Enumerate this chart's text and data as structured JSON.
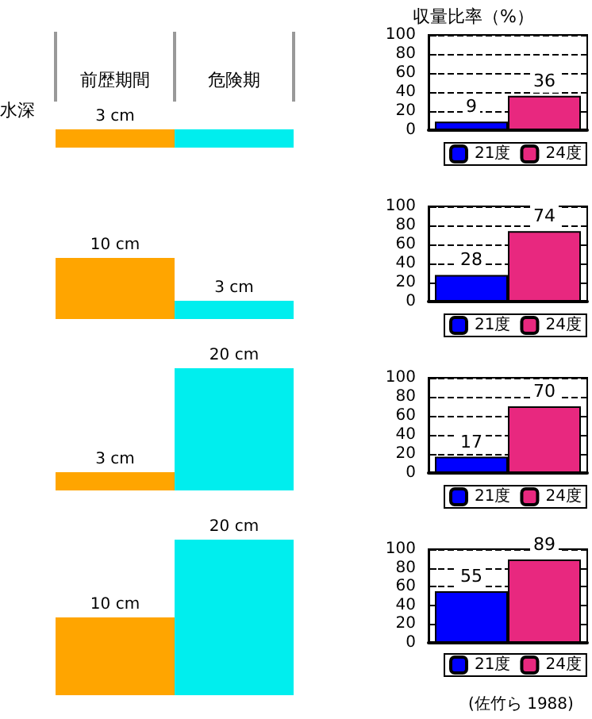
{
  "chart_data": [
    {
      "type": "bar",
      "ylabel": "水深",
      "categories": [
        "前歴期間",
        "危険期"
      ],
      "values": [
        3,
        3
      ],
      "colors": [
        "#ffa500",
        "#00eeee"
      ],
      "value_labels": [
        "3 cm",
        null
      ]
    },
    {
      "type": "bar",
      "title": "収量比率（%）",
      "categories": [
        null
      ],
      "series": [
        {
          "name": "21度",
          "color": "#0000ff",
          "values": [
            9
          ]
        },
        {
          "name": "24度",
          "color": "#e8287f",
          "values": [
            36
          ]
        }
      ],
      "ylim": [
        0,
        100
      ],
      "yticks": [
        0,
        20,
        40,
        60,
        80,
        100
      ],
      "grid": "y",
      "legend": "bottom",
      "data_labels": true,
      "tick_labels": "y"
    },
    {
      "type": "bar",
      "categories": [
        null,
        null
      ],
      "values": [
        10,
        3
      ],
      "colors": [
        "#ffa500",
        "#00eeee"
      ],
      "value_labels": [
        "10 cm",
        "3 cm"
      ]
    },
    {
      "type": "bar",
      "categories": [
        null
      ],
      "series": [
        {
          "name": "21度",
          "color": "#0000ff",
          "values": [
            28
          ]
        },
        {
          "name": "24度",
          "color": "#e8287f",
          "values": [
            74
          ]
        }
      ],
      "ylim": [
        0,
        100
      ],
      "yticks": [
        0,
        20,
        40,
        60,
        80,
        100
      ],
      "grid": "y",
      "legend": "bottom",
      "data_labels": true,
      "tick_labels": "y"
    },
    {
      "type": "bar",
      "categories": [
        null,
        null
      ],
      "values": [
        3,
        20
      ],
      "colors": [
        "#ffa500",
        "#00eeee"
      ],
      "value_labels": [
        "3 cm",
        "20 cm"
      ]
    },
    {
      "type": "bar",
      "categories": [
        null
      ],
      "series": [
        {
          "name": "21度",
          "color": "#0000ff",
          "values": [
            17
          ]
        },
        {
          "name": "24度",
          "color": "#e8287f",
          "values": [
            70
          ]
        }
      ],
      "ylim": [
        0,
        100
      ],
      "yticks": [
        0,
        20,
        40,
        60,
        80,
        100
      ],
      "grid": "y",
      "legend": "bottom",
      "data_labels": true,
      "tick_labels": "y"
    },
    {
      "type": "bar",
      "categories": [
        null,
        null
      ],
      "values": [
        10,
        20
      ],
      "colors": [
        "#ffa500",
        "#00eeee"
      ],
      "value_labels": [
        "10 cm",
        "20 cm"
      ]
    },
    {
      "type": "bar",
      "categories": [
        null
      ],
      "series": [
        {
          "name": "21度",
          "color": "#0000ff",
          "values": [
            55
          ]
        },
        {
          "name": "24度",
          "color": "#e8287f",
          "values": [
            89
          ]
        }
      ],
      "ylim": [
        0,
        100
      ],
      "yticks": [
        0,
        20,
        40,
        60,
        80,
        100
      ],
      "grid": "y",
      "legend": "bottom",
      "data_labels": true,
      "tick_labels": "y",
      "annotations": [
        "(佐竹ら 1988)"
      ]
    }
  ]
}
